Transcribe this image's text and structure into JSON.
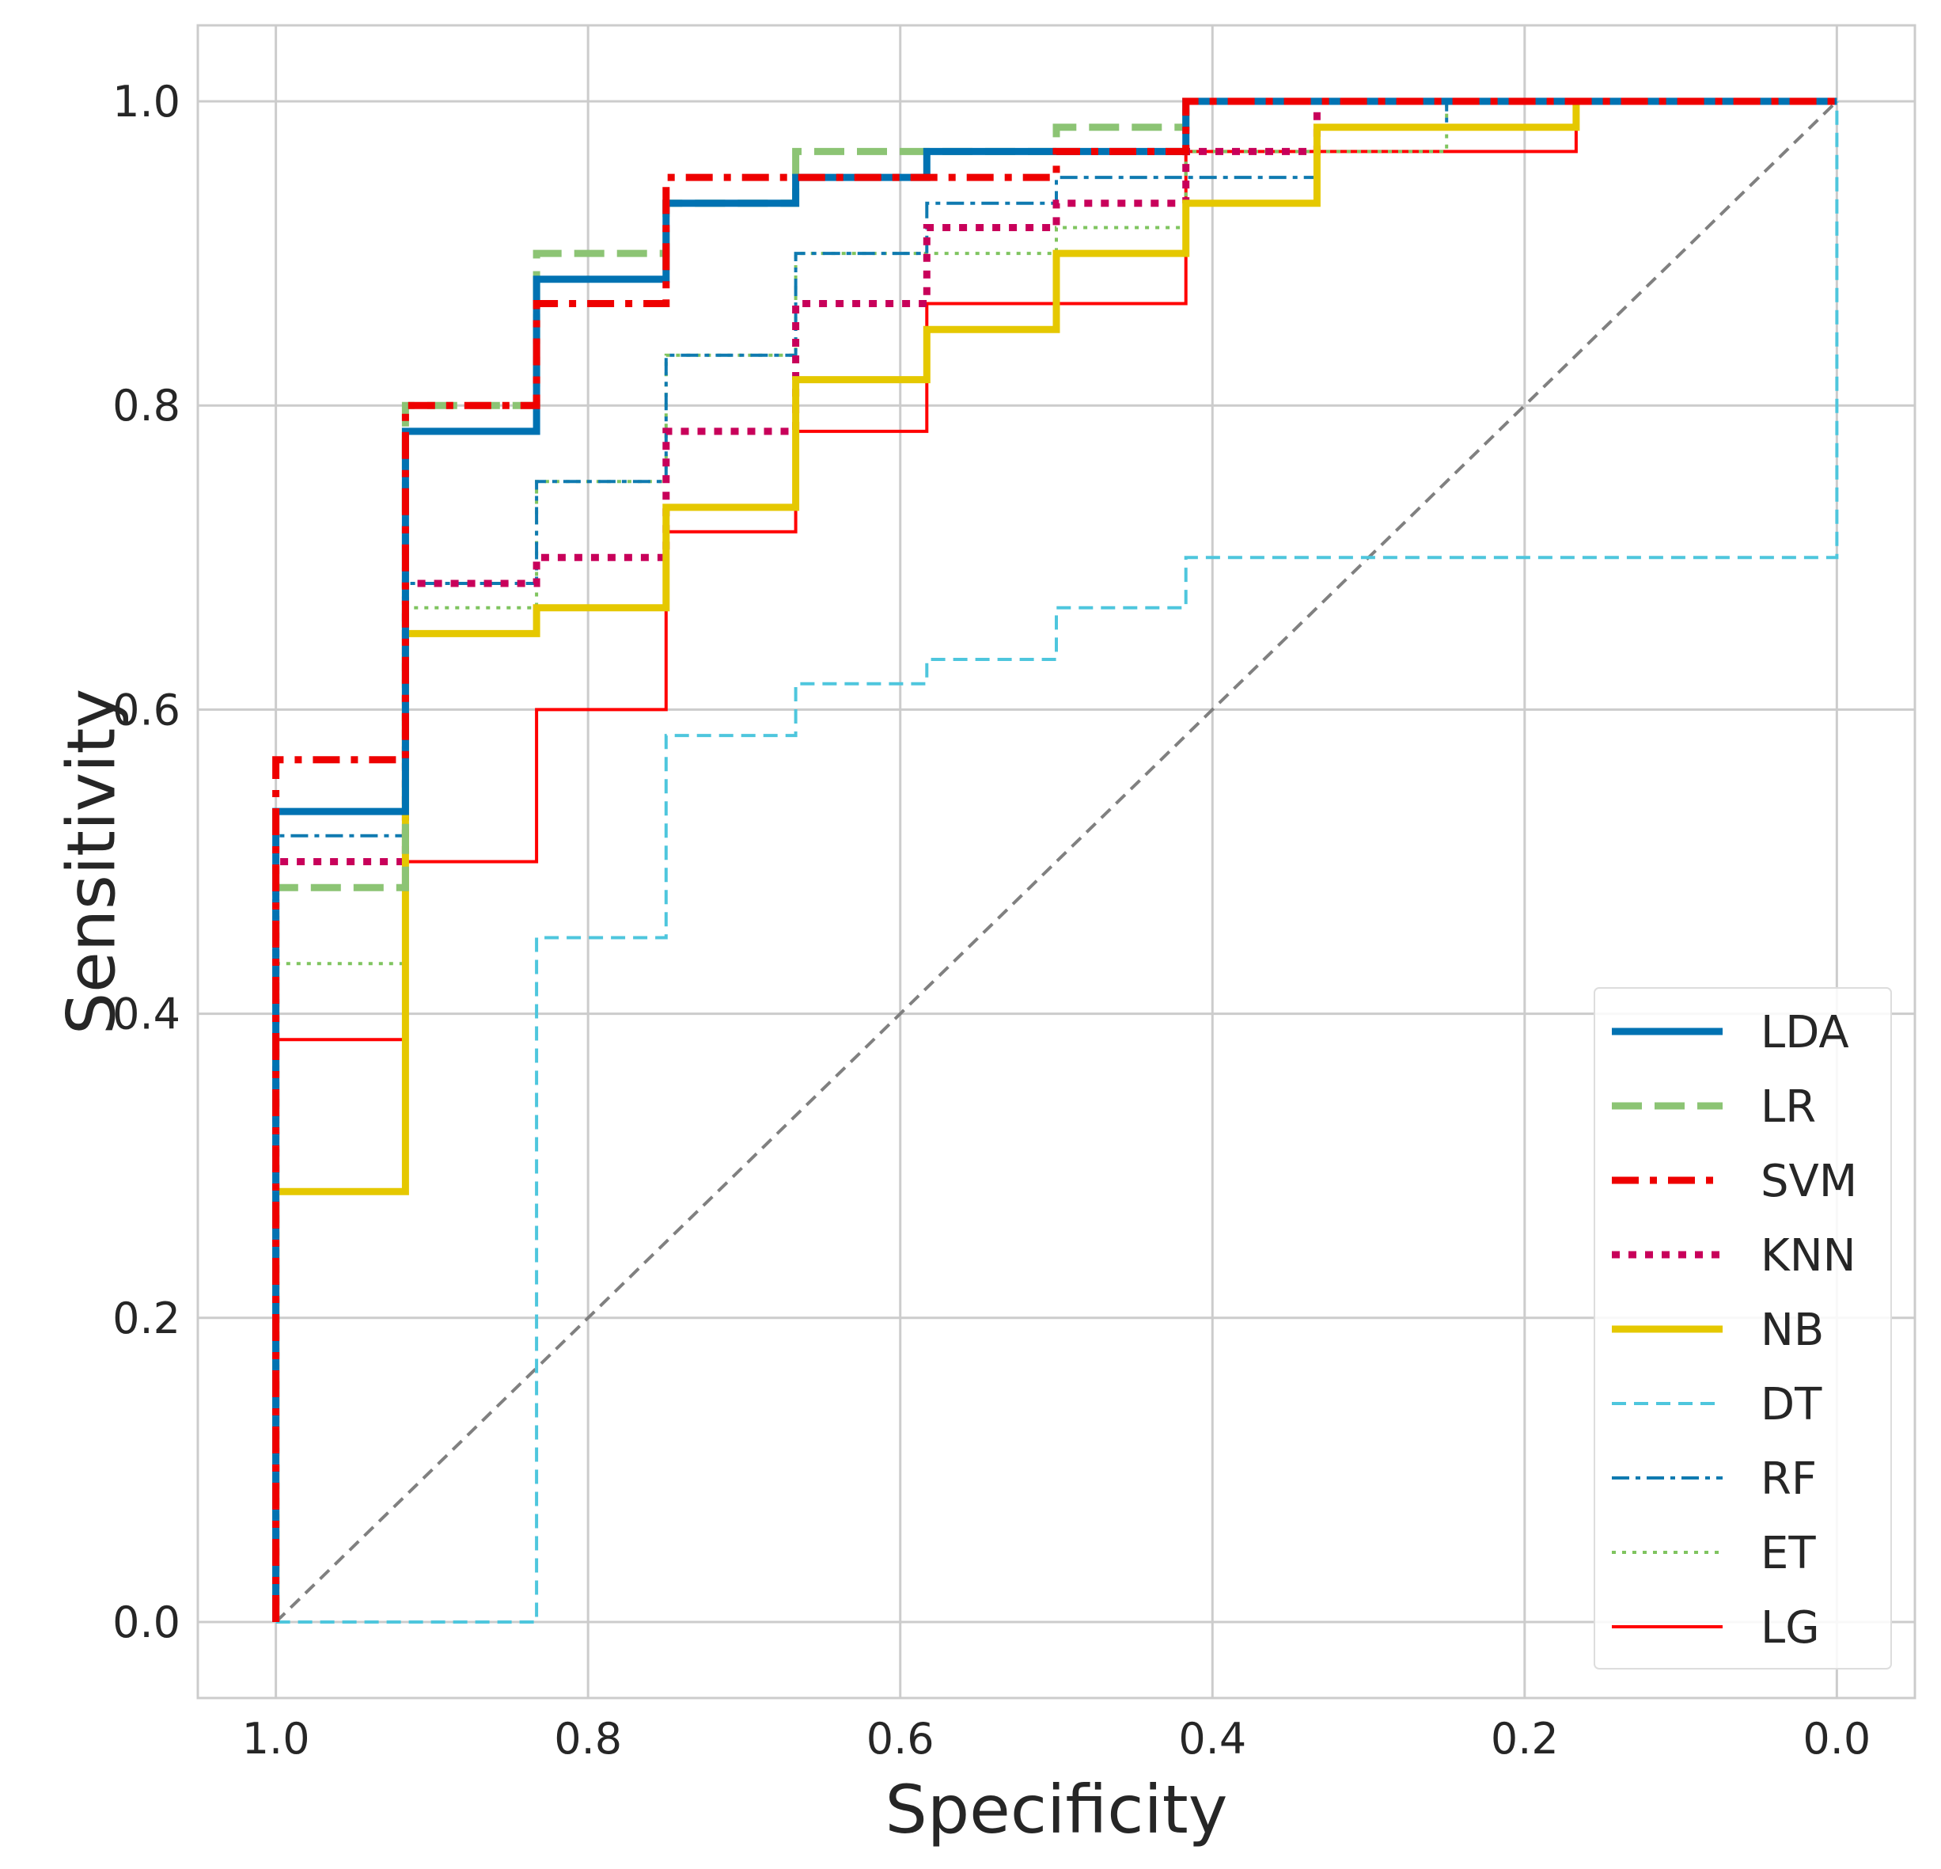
{
  "chart_data": {
    "type": "line",
    "title": "",
    "xlabel": "Specificity",
    "ylabel": "Sensitivity",
    "xlim": [
      1.05,
      -0.05
    ],
    "ylim": [
      -0.05,
      1.05
    ],
    "x_ticks": [
      1.0,
      0.8,
      0.6,
      0.4,
      0.2,
      0.0
    ],
    "x_tick_labels": [
      "1.0",
      "0.8",
      "0.6",
      "0.4",
      "0.2",
      "0.0"
    ],
    "y_ticks": [
      0.0,
      0.2,
      0.4,
      0.6,
      0.8,
      1.0
    ],
    "y_tick_labels": [
      "0.0",
      "0.2",
      "0.4",
      "0.6",
      "0.8",
      "1.0"
    ],
    "grid": true,
    "legend_position": "lower-right",
    "diagonal": {
      "x": [
        1.0,
        0.0
      ],
      "y": [
        0.0,
        1.0
      ],
      "color": "#808080",
      "style": "dashed"
    },
    "series": [
      {
        "name": "DT",
        "color": "#4ec6dd",
        "style": "dashed",
        "width": "thin",
        "x": [
          1.0,
          0.833,
          0.833,
          0.75,
          0.75,
          0.667,
          0.667,
          0.583,
          0.583,
          0.5,
          0.5,
          0.417,
          0.417,
          0.0,
          0.0
        ],
        "y": [
          0.0,
          0.0,
          0.45,
          0.45,
          0.583,
          0.583,
          0.617,
          0.617,
          0.633,
          0.633,
          0.667,
          0.667,
          0.7,
          0.7,
          1.0
        ]
      },
      {
        "name": "LG",
        "color": "#ff0000",
        "style": "solid",
        "width": "thin",
        "x": [
          1.0,
          1.0,
          0.917,
          0.917,
          0.833,
          0.833,
          0.75,
          0.75,
          0.667,
          0.667,
          0.583,
          0.583,
          0.417,
          0.417,
          0.167,
          0.167,
          0.0
        ],
        "y": [
          0.0,
          0.383,
          0.383,
          0.5,
          0.5,
          0.6,
          0.6,
          0.717,
          0.717,
          0.783,
          0.783,
          0.867,
          0.867,
          0.967,
          0.967,
          1.0,
          1.0
        ]
      },
      {
        "name": "ET",
        "color": "#7fc45f",
        "style": "dotted",
        "width": "thin",
        "x": [
          1.0,
          1.0,
          0.917,
          0.917,
          0.833,
          0.833,
          0.75,
          0.75,
          0.667,
          0.667,
          0.5,
          0.5,
          0.417,
          0.417,
          0.25,
          0.25,
          0.0
        ],
        "y": [
          0.0,
          0.433,
          0.433,
          0.667,
          0.667,
          0.75,
          0.75,
          0.833,
          0.833,
          0.9,
          0.9,
          0.917,
          0.917,
          0.967,
          0.967,
          1.0,
          1.0
        ]
      },
      {
        "name": "RF",
        "color": "#0f7ab0",
        "style": "dashdot",
        "width": "thin",
        "x": [
          1.0,
          1.0,
          0.917,
          0.917,
          0.833,
          0.833,
          0.75,
          0.75,
          0.667,
          0.667,
          0.583,
          0.583,
          0.5,
          0.5,
          0.333,
          0.333,
          0.25,
          0.25,
          0.0
        ],
        "y": [
          0.0,
          0.517,
          0.517,
          0.683,
          0.683,
          0.75,
          0.75,
          0.833,
          0.833,
          0.9,
          0.9,
          0.933,
          0.933,
          0.95,
          0.95,
          0.983,
          0.983,
          1.0,
          1.0
        ]
      },
      {
        "name": "KNN",
        "color": "#c8005a",
        "style": "dotted",
        "width": "thick",
        "x": [
          1.0,
          1.0,
          0.917,
          0.917,
          0.833,
          0.833,
          0.75,
          0.75,
          0.667,
          0.667,
          0.583,
          0.583,
          0.5,
          0.5,
          0.417,
          0.417,
          0.333,
          0.333,
          0.0
        ],
        "y": [
          0.0,
          0.5,
          0.5,
          0.683,
          0.683,
          0.7,
          0.7,
          0.783,
          0.783,
          0.867,
          0.867,
          0.917,
          0.917,
          0.933,
          0.933,
          0.967,
          0.967,
          1.0,
          1.0
        ]
      },
      {
        "name": "NB",
        "color": "#e5c800",
        "style": "solid",
        "width": "thick",
        "x": [
          1.0,
          1.0,
          0.917,
          0.917,
          0.833,
          0.833,
          0.75,
          0.75,
          0.667,
          0.667,
          0.583,
          0.583,
          0.5,
          0.5,
          0.417,
          0.417,
          0.333,
          0.333,
          0.167,
          0.167,
          0.0
        ],
        "y": [
          0.0,
          0.283,
          0.283,
          0.65,
          0.65,
          0.667,
          0.667,
          0.733,
          0.733,
          0.817,
          0.817,
          0.85,
          0.85,
          0.9,
          0.9,
          0.933,
          0.933,
          0.983,
          0.983,
          1.0,
          1.0
        ]
      },
      {
        "name": "LR",
        "color": "#8cc474",
        "style": "dashed",
        "width": "thick",
        "x": [
          1.0,
          1.0,
          0.917,
          0.917,
          0.833,
          0.833,
          0.75,
          0.75,
          0.667,
          0.667,
          0.5,
          0.5,
          0.417,
          0.417,
          0.0
        ],
        "y": [
          0.0,
          0.483,
          0.483,
          0.8,
          0.8,
          0.9,
          0.9,
          0.933,
          0.933,
          0.967,
          0.967,
          0.983,
          0.983,
          1.0,
          1.0
        ]
      },
      {
        "name": "LDA",
        "color": "#0072b2",
        "style": "solid",
        "width": "thick",
        "x": [
          1.0,
          1.0,
          0.917,
          0.917,
          0.833,
          0.833,
          0.75,
          0.75,
          0.667,
          0.667,
          0.583,
          0.583,
          0.417,
          0.417,
          0.0
        ],
        "y": [
          0.0,
          0.533,
          0.533,
          0.783,
          0.783,
          0.883,
          0.883,
          0.933,
          0.933,
          0.95,
          0.95,
          0.967,
          0.967,
          1.0,
          1.0
        ]
      },
      {
        "name": "SVM",
        "color": "#ee0000",
        "style": "dashdot",
        "width": "thick",
        "x": [
          1.0,
          1.0,
          0.917,
          0.917,
          0.833,
          0.833,
          0.75,
          0.75,
          0.5,
          0.5,
          0.417,
          0.417,
          0.0
        ],
        "y": [
          0.0,
          0.567,
          0.567,
          0.8,
          0.8,
          0.867,
          0.867,
          0.95,
          0.95,
          0.967,
          0.967,
          1.0,
          1.0
        ]
      }
    ],
    "legend_order": [
      "LDA",
      "LR",
      "SVM",
      "KNN",
      "NB",
      "DT",
      "RF",
      "ET",
      "LG"
    ]
  }
}
